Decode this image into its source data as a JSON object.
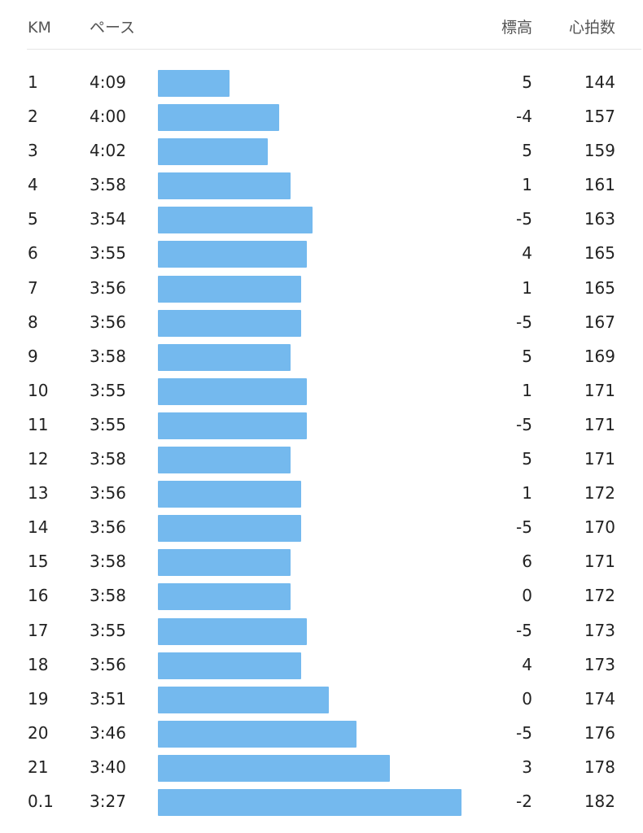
{
  "header": {
    "km": "KM",
    "pace": "ペース",
    "elevation": "標高",
    "heart_rate": "心拍数"
  },
  "colors": {
    "bar": "#74b9ee",
    "divider": "#e6e6e6",
    "text": "#222222",
    "header_text": "#555555"
  },
  "pace_bar_scale_seconds": [
    200,
    262
  ],
  "splits": [
    {
      "km": "1",
      "pace": "4:09",
      "pace_seconds": 249,
      "elevation": "5",
      "heart_rate": "144"
    },
    {
      "km": "2",
      "pace": "4:00",
      "pace_seconds": 240,
      "elevation": "-4",
      "heart_rate": "157"
    },
    {
      "km": "3",
      "pace": "4:02",
      "pace_seconds": 242,
      "elevation": "5",
      "heart_rate": "159"
    },
    {
      "km": "4",
      "pace": "3:58",
      "pace_seconds": 238,
      "elevation": "1",
      "heart_rate": "161"
    },
    {
      "km": "5",
      "pace": "3:54",
      "pace_seconds": 234,
      "elevation": "-5",
      "heart_rate": "163"
    },
    {
      "km": "6",
      "pace": "3:55",
      "pace_seconds": 235,
      "elevation": "4",
      "heart_rate": "165"
    },
    {
      "km": "7",
      "pace": "3:56",
      "pace_seconds": 236,
      "elevation": "1",
      "heart_rate": "165"
    },
    {
      "km": "8",
      "pace": "3:56",
      "pace_seconds": 236,
      "elevation": "-5",
      "heart_rate": "167"
    },
    {
      "km": "9",
      "pace": "3:58",
      "pace_seconds": 238,
      "elevation": "5",
      "heart_rate": "169"
    },
    {
      "km": "10",
      "pace": "3:55",
      "pace_seconds": 235,
      "elevation": "1",
      "heart_rate": "171"
    },
    {
      "km": "11",
      "pace": "3:55",
      "pace_seconds": 235,
      "elevation": "-5",
      "heart_rate": "171"
    },
    {
      "km": "12",
      "pace": "3:58",
      "pace_seconds": 238,
      "elevation": "5",
      "heart_rate": "171"
    },
    {
      "km": "13",
      "pace": "3:56",
      "pace_seconds": 236,
      "elevation": "1",
      "heart_rate": "172"
    },
    {
      "km": "14",
      "pace": "3:56",
      "pace_seconds": 236,
      "elevation": "-5",
      "heart_rate": "170"
    },
    {
      "km": "15",
      "pace": "3:58",
      "pace_seconds": 238,
      "elevation": "6",
      "heart_rate": "171"
    },
    {
      "km": "16",
      "pace": "3:58",
      "pace_seconds": 238,
      "elevation": "0",
      "heart_rate": "172"
    },
    {
      "km": "17",
      "pace": "3:55",
      "pace_seconds": 235,
      "elevation": "-5",
      "heart_rate": "173"
    },
    {
      "km": "18",
      "pace": "3:56",
      "pace_seconds": 236,
      "elevation": "4",
      "heart_rate": "173"
    },
    {
      "km": "19",
      "pace": "3:51",
      "pace_seconds": 231,
      "elevation": "0",
      "heart_rate": "174"
    },
    {
      "km": "20",
      "pace": "3:46",
      "pace_seconds": 226,
      "elevation": "-5",
      "heart_rate": "176"
    },
    {
      "km": "21",
      "pace": "3:40",
      "pace_seconds": 220,
      "elevation": "3",
      "heart_rate": "178"
    },
    {
      "km": "0.1",
      "pace": "3:27",
      "pace_seconds": 207,
      "elevation": "-2",
      "heart_rate": "182"
    }
  ]
}
